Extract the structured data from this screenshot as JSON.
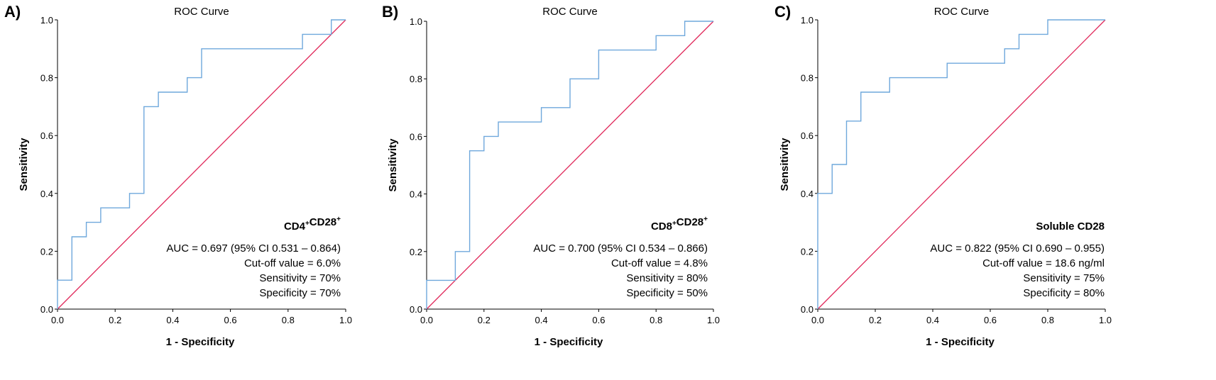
{
  "colors": {
    "roc_line": "#6fa8dc",
    "reference_line": "#e0285a",
    "axis": "#000000",
    "text": "#000000"
  },
  "chart_data": [
    {
      "panel_label": "A)",
      "type": "line",
      "title": "ROC Curve",
      "xlabel": "1 - Specificity",
      "ylabel": "Sensitivity",
      "xlim": [
        0,
        1
      ],
      "ylim": [
        0,
        1
      ],
      "x_ticks": [
        "0.0",
        "0.2",
        "0.4",
        "0.6",
        "0.8",
        "1.0"
      ],
      "y_ticks": [
        "0.0",
        "0.2",
        "0.4",
        "0.6",
        "0.8",
        "1.0"
      ],
      "grid": false,
      "series": [
        {
          "points": [
            [
              0,
              0
            ],
            [
              0,
              0.1
            ],
            [
              0.05,
              0.1
            ],
            [
              0.05,
              0.25
            ],
            [
              0.1,
              0.25
            ],
            [
              0.1,
              0.3
            ],
            [
              0.15,
              0.3
            ],
            [
              0.15,
              0.35
            ],
            [
              0.25,
              0.35
            ],
            [
              0.25,
              0.4
            ],
            [
              0.3,
              0.4
            ],
            [
              0.3,
              0.7
            ],
            [
              0.35,
              0.7
            ],
            [
              0.35,
              0.75
            ],
            [
              0.45,
              0.75
            ],
            [
              0.45,
              0.8
            ],
            [
              0.5,
              0.8
            ],
            [
              0.5,
              0.9
            ],
            [
              0.85,
              0.9
            ],
            [
              0.85,
              0.95
            ],
            [
              0.95,
              0.95
            ],
            [
              0.95,
              1.0
            ],
            [
              1.0,
              1.0
            ]
          ]
        },
        {
          "points": [
            [
              0,
              0
            ],
            [
              1,
              1
            ]
          ]
        }
      ],
      "annotation": {
        "marker": "CD4",
        "marker_sup": "+",
        "marker2": "CD28",
        "marker2_sup": "+",
        "lines": [
          "AUC = 0.697 (95% CI 0.531 – 0.864)",
          "Cut-off value = 6.0%",
          "Sensitivity = 70%",
          "Specificity = 70%"
        ]
      }
    },
    {
      "panel_label": "B)",
      "type": "line",
      "title": "ROC Curve",
      "xlabel": "1 - Specificity",
      "ylabel": "Sensitivity",
      "xlim": [
        0,
        1
      ],
      "ylim": [
        0,
        1
      ],
      "x_ticks": [
        "0.0",
        "0.2",
        "0.4",
        "0.6",
        "0.8",
        "1.0"
      ],
      "y_ticks": [
        "0.0",
        "0.2",
        "0.4",
        "0.6",
        "0.8",
        "1.0"
      ],
      "grid": false,
      "series": [
        {
          "points": [
            [
              0,
              0
            ],
            [
              0,
              0.1
            ],
            [
              0.1,
              0.1
            ],
            [
              0.1,
              0.2
            ],
            [
              0.15,
              0.2
            ],
            [
              0.15,
              0.55
            ],
            [
              0.2,
              0.55
            ],
            [
              0.2,
              0.6
            ],
            [
              0.25,
              0.6
            ],
            [
              0.25,
              0.65
            ],
            [
              0.4,
              0.65
            ],
            [
              0.4,
              0.7
            ],
            [
              0.5,
              0.7
            ],
            [
              0.5,
              0.8
            ],
            [
              0.6,
              0.8
            ],
            [
              0.6,
              0.9
            ],
            [
              0.8,
              0.9
            ],
            [
              0.8,
              0.95
            ],
            [
              0.9,
              0.95
            ],
            [
              0.9,
              1.0
            ],
            [
              1.0,
              1.0
            ]
          ]
        },
        {
          "points": [
            [
              0,
              0
            ],
            [
              1,
              1
            ]
          ]
        }
      ],
      "annotation": {
        "marker": "CD8",
        "marker_sup": "+",
        "marker2": "CD28",
        "marker2_sup": "+",
        "lines": [
          "AUC = 0.700 (95% CI 0.534 – 0.866)",
          "Cut-off value = 4.8%",
          "Sensitivity = 80%",
          "Specificity = 50%"
        ]
      }
    },
    {
      "panel_label": "C)",
      "type": "line",
      "title": "ROC Curve",
      "xlabel": "1 - Specificity",
      "ylabel": "Sensitivity",
      "xlim": [
        0,
        1
      ],
      "ylim": [
        0,
        1
      ],
      "x_ticks": [
        "0.0",
        "0.2",
        "0.4",
        "0.6",
        "0.8",
        "1.0"
      ],
      "y_ticks": [
        "0.0",
        "0.2",
        "0.4",
        "0.6",
        "0.8",
        "1.0"
      ],
      "grid": false,
      "series": [
        {
          "points": [
            [
              0,
              0
            ],
            [
              0,
              0.4
            ],
            [
              0.05,
              0.4
            ],
            [
              0.05,
              0.5
            ],
            [
              0.1,
              0.5
            ],
            [
              0.1,
              0.65
            ],
            [
              0.15,
              0.65
            ],
            [
              0.15,
              0.75
            ],
            [
              0.25,
              0.75
            ],
            [
              0.25,
              0.8
            ],
            [
              0.45,
              0.8
            ],
            [
              0.45,
              0.85
            ],
            [
              0.65,
              0.85
            ],
            [
              0.65,
              0.9
            ],
            [
              0.7,
              0.9
            ],
            [
              0.7,
              0.95
            ],
            [
              0.8,
              0.95
            ],
            [
              0.8,
              1.0
            ],
            [
              1.0,
              1.0
            ]
          ]
        },
        {
          "points": [
            [
              0,
              0
            ],
            [
              1,
              1
            ]
          ]
        }
      ],
      "annotation": {
        "marker": "Soluble CD28",
        "marker_sup": "",
        "marker2": "",
        "marker2_sup": "",
        "lines": [
          "AUC = 0.822 (95% CI 0.690 – 0.955)",
          "Cut-off value = 18.6 ng/ml",
          "Sensitivity = 75%",
          "Specificity = 80%"
        ]
      }
    }
  ]
}
